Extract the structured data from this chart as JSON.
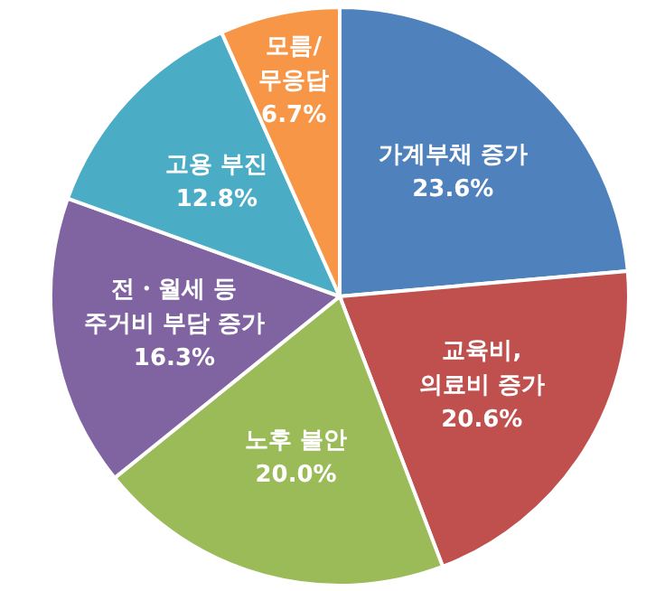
{
  "chart_data": {
    "type": "pie",
    "categories": [
      "가계부채 증가",
      "교육비, 의료비 증가",
      "노후 불안",
      "전・월세 등 주거비 부담 증가",
      "고용 부진",
      "모름/무응답"
    ],
    "values": [
      23.6,
      20.6,
      20.0,
      16.3,
      12.8,
      6.7
    ],
    "value_labels": [
      "23.6%",
      "20.6%",
      "20.0%",
      "16.3%",
      "12.8%",
      "6.7%"
    ],
    "colors": [
      "#4f81bd",
      "#c0504d",
      "#9bbb59",
      "#8064a2",
      "#4bacc6",
      "#f79646"
    ]
  }
}
